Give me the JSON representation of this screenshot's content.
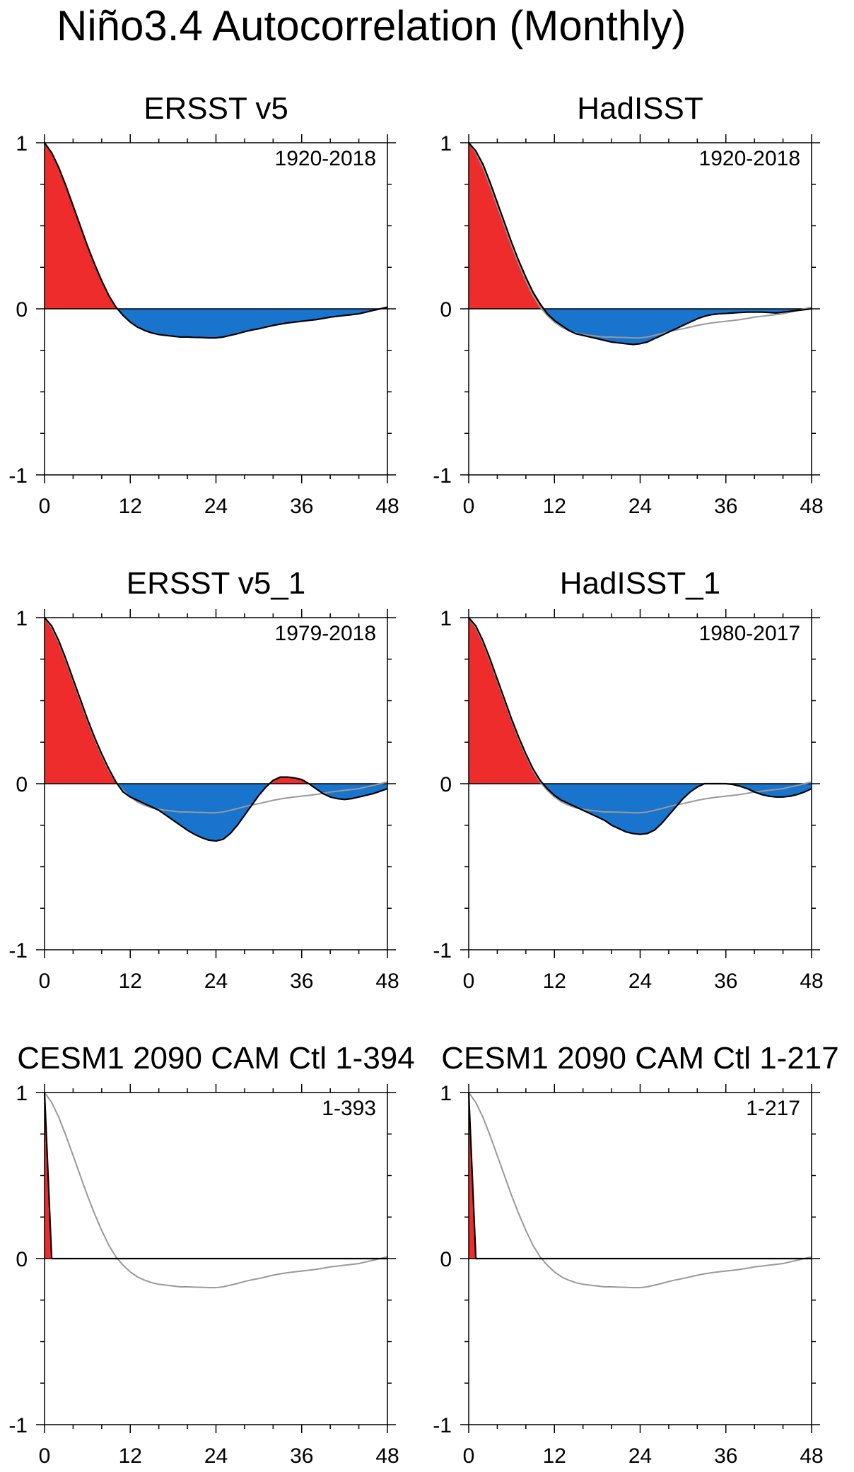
{
  "figure": {
    "title": "Niño3.4 Autocorrelation (Monthly)"
  },
  "colors": {
    "positive_fill": "#ee2c2c",
    "negative_fill": "#1874cd",
    "line": "#000000",
    "reference_line": "#999999"
  },
  "chart_data": [
    {
      "type": "area",
      "title": "ERSST v5",
      "period_label": "1920-2018",
      "xlim": [
        0,
        48
      ],
      "ylim": [
        -1,
        1
      ],
      "xticks": [
        0,
        12,
        24,
        36,
        48
      ],
      "yticks": [
        1,
        0,
        -1
      ],
      "xtick_labels": [
        "0",
        "12",
        "24",
        "36",
        "48"
      ],
      "ytick_labels": [
        "1",
        "0",
        "-1"
      ],
      "x": [
        0,
        1,
        2,
        3,
        4,
        5,
        6,
        7,
        8,
        9,
        10,
        11,
        12,
        13,
        14,
        15,
        16,
        17,
        18,
        19,
        20,
        21,
        22,
        23,
        24,
        25,
        26,
        27,
        28,
        29,
        30,
        31,
        32,
        33,
        34,
        35,
        36,
        37,
        38,
        39,
        40,
        41,
        42,
        43,
        44,
        45,
        46,
        47,
        48
      ],
      "series": [
        {
          "name": "ERSST v5",
          "values": [
            1.0,
            0.94,
            0.85,
            0.74,
            0.62,
            0.5,
            0.38,
            0.27,
            0.17,
            0.08,
            0.01,
            -0.04,
            -0.08,
            -0.11,
            -0.13,
            -0.145,
            -0.155,
            -0.16,
            -0.165,
            -0.17,
            -0.17,
            -0.172,
            -0.173,
            -0.175,
            -0.175,
            -0.17,
            -0.16,
            -0.15,
            -0.138,
            -0.128,
            -0.12,
            -0.11,
            -0.1,
            -0.092,
            -0.085,
            -0.08,
            -0.075,
            -0.07,
            -0.065,
            -0.058,
            -0.05,
            -0.045,
            -0.04,
            -0.035,
            -0.03,
            -0.02,
            -0.01,
            0.0,
            0.01
          ]
        }
      ],
      "reference": null
    },
    {
      "type": "area",
      "title": "HadISST",
      "period_label": "1920-2018",
      "xlim": [
        0,
        48
      ],
      "ylim": [
        -1,
        1
      ],
      "xticks": [
        0,
        12,
        24,
        36,
        48
      ],
      "yticks": [
        1,
        0,
        -1
      ],
      "xtick_labels": [
        "0",
        "12",
        "24",
        "36",
        "48"
      ],
      "ytick_labels": [
        "1",
        "0",
        "-1"
      ],
      "x": [
        0,
        1,
        2,
        3,
        4,
        5,
        6,
        7,
        8,
        9,
        10,
        11,
        12,
        13,
        14,
        15,
        16,
        17,
        18,
        19,
        20,
        21,
        22,
        23,
        24,
        25,
        26,
        27,
        28,
        29,
        30,
        31,
        32,
        33,
        34,
        35,
        36,
        37,
        38,
        39,
        40,
        41,
        42,
        43,
        44,
        45,
        46,
        47,
        48
      ],
      "series": [
        {
          "name": "HadISST",
          "values": [
            1.0,
            0.95,
            0.87,
            0.76,
            0.64,
            0.52,
            0.4,
            0.29,
            0.19,
            0.1,
            0.03,
            -0.03,
            -0.07,
            -0.1,
            -0.13,
            -0.15,
            -0.16,
            -0.17,
            -0.18,
            -0.19,
            -0.2,
            -0.205,
            -0.21,
            -0.215,
            -0.21,
            -0.2,
            -0.18,
            -0.16,
            -0.14,
            -0.12,
            -0.1,
            -0.08,
            -0.06,
            -0.045,
            -0.035,
            -0.03,
            -0.028,
            -0.025,
            -0.022,
            -0.02,
            -0.02,
            -0.02,
            -0.022,
            -0.025,
            -0.02,
            -0.015,
            -0.01,
            -0.005,
            0.0
          ]
        }
      ],
      "reference": {
        "name": "ERSST v5 (1920-2018)",
        "values": [
          1.0,
          0.94,
          0.85,
          0.74,
          0.62,
          0.5,
          0.38,
          0.27,
          0.17,
          0.08,
          0.01,
          -0.04,
          -0.08,
          -0.11,
          -0.13,
          -0.145,
          -0.155,
          -0.16,
          -0.165,
          -0.17,
          -0.17,
          -0.172,
          -0.173,
          -0.175,
          -0.175,
          -0.17,
          -0.16,
          -0.15,
          -0.138,
          -0.128,
          -0.12,
          -0.11,
          -0.1,
          -0.092,
          -0.085,
          -0.08,
          -0.075,
          -0.07,
          -0.065,
          -0.058,
          -0.05,
          -0.045,
          -0.04,
          -0.035,
          -0.03,
          -0.02,
          -0.01,
          0.0,
          0.01
        ]
      }
    },
    {
      "type": "area",
      "title": "ERSST v5_1",
      "period_label": "1979-2018",
      "xlim": [
        0,
        48
      ],
      "ylim": [
        -1,
        1
      ],
      "xticks": [
        0,
        12,
        24,
        36,
        48
      ],
      "yticks": [
        1,
        0,
        -1
      ],
      "xtick_labels": [
        "0",
        "12",
        "24",
        "36",
        "48"
      ],
      "ytick_labels": [
        "1",
        "0",
        "-1"
      ],
      "x": [
        0,
        1,
        2,
        3,
        4,
        5,
        6,
        7,
        8,
        9,
        10,
        11,
        12,
        13,
        14,
        15,
        16,
        17,
        18,
        19,
        20,
        21,
        22,
        23,
        24,
        25,
        26,
        27,
        28,
        29,
        30,
        31,
        32,
        33,
        34,
        35,
        36,
        37,
        38,
        39,
        40,
        41,
        42,
        43,
        44,
        45,
        46,
        47,
        48
      ],
      "series": [
        {
          "name": "ERSST v5_1",
          "values": [
            1.0,
            0.95,
            0.86,
            0.75,
            0.63,
            0.51,
            0.39,
            0.28,
            0.18,
            0.09,
            0.01,
            -0.05,
            -0.08,
            -0.1,
            -0.12,
            -0.14,
            -0.16,
            -0.19,
            -0.22,
            -0.25,
            -0.28,
            -0.305,
            -0.325,
            -0.34,
            -0.345,
            -0.335,
            -0.3,
            -0.25,
            -0.19,
            -0.13,
            -0.07,
            -0.02,
            0.02,
            0.04,
            0.04,
            0.035,
            0.025,
            0.0,
            -0.03,
            -0.06,
            -0.08,
            -0.09,
            -0.095,
            -0.09,
            -0.08,
            -0.07,
            -0.06,
            -0.045,
            -0.03
          ]
        }
      ],
      "reference": {
        "name": "ERSST v5 (1920-2018)",
        "values": [
          1.0,
          0.94,
          0.85,
          0.74,
          0.62,
          0.5,
          0.38,
          0.27,
          0.17,
          0.08,
          0.01,
          -0.04,
          -0.08,
          -0.11,
          -0.13,
          -0.145,
          -0.155,
          -0.16,
          -0.165,
          -0.17,
          -0.17,
          -0.172,
          -0.173,
          -0.175,
          -0.175,
          -0.17,
          -0.16,
          -0.15,
          -0.138,
          -0.128,
          -0.12,
          -0.11,
          -0.1,
          -0.092,
          -0.085,
          -0.08,
          -0.075,
          -0.07,
          -0.065,
          -0.058,
          -0.05,
          -0.045,
          -0.04,
          -0.035,
          -0.03,
          -0.02,
          -0.01,
          0.0,
          0.01
        ]
      }
    },
    {
      "type": "area",
      "title": "HadISST_1",
      "period_label": "1980-2017",
      "xlim": [
        0,
        48
      ],
      "ylim": [
        -1,
        1
      ],
      "xticks": [
        0,
        12,
        24,
        36,
        48
      ],
      "yticks": [
        1,
        0,
        -1
      ],
      "xtick_labels": [
        "0",
        "12",
        "24",
        "36",
        "48"
      ],
      "ytick_labels": [
        "1",
        "0",
        "-1"
      ],
      "x": [
        0,
        1,
        2,
        3,
        4,
        5,
        6,
        7,
        8,
        9,
        10,
        11,
        12,
        13,
        14,
        15,
        16,
        17,
        18,
        19,
        20,
        21,
        22,
        23,
        24,
        25,
        26,
        27,
        28,
        29,
        30,
        31,
        32,
        33,
        34,
        35,
        36,
        37,
        38,
        39,
        40,
        41,
        42,
        43,
        44,
        45,
        46,
        47,
        48
      ],
      "series": [
        {
          "name": "HadISST_1",
          "values": [
            1.0,
            0.95,
            0.86,
            0.75,
            0.63,
            0.51,
            0.39,
            0.28,
            0.18,
            0.09,
            0.02,
            -0.03,
            -0.07,
            -0.1,
            -0.12,
            -0.14,
            -0.16,
            -0.18,
            -0.2,
            -0.22,
            -0.25,
            -0.27,
            -0.29,
            -0.3,
            -0.305,
            -0.3,
            -0.28,
            -0.24,
            -0.19,
            -0.14,
            -0.09,
            -0.05,
            -0.02,
            0.0,
            0.0,
            0.0,
            0.0,
            -0.005,
            -0.015,
            -0.03,
            -0.05,
            -0.065,
            -0.075,
            -0.08,
            -0.08,
            -0.075,
            -0.065,
            -0.05,
            -0.03
          ]
        }
      ],
      "reference": {
        "name": "ERSST v5 (1920-2018)",
        "values": [
          1.0,
          0.94,
          0.85,
          0.74,
          0.62,
          0.5,
          0.38,
          0.27,
          0.17,
          0.08,
          0.01,
          -0.04,
          -0.08,
          -0.11,
          -0.13,
          -0.145,
          -0.155,
          -0.16,
          -0.165,
          -0.17,
          -0.17,
          -0.172,
          -0.173,
          -0.175,
          -0.175,
          -0.17,
          -0.16,
          -0.15,
          -0.138,
          -0.128,
          -0.12,
          -0.11,
          -0.1,
          -0.092,
          -0.085,
          -0.08,
          -0.075,
          -0.07,
          -0.065,
          -0.058,
          -0.05,
          -0.045,
          -0.04,
          -0.035,
          -0.03,
          -0.02,
          -0.01,
          0.0,
          0.01
        ]
      }
    },
    {
      "type": "area",
      "title": "CESM1 2090 CAM Ctl 1-394",
      "period_label": "1-393",
      "xlim": [
        0,
        48
      ],
      "ylim": [
        -1,
        1
      ],
      "xticks": [
        0,
        12,
        24,
        36,
        48
      ],
      "yticks": [
        1,
        0,
        -1
      ],
      "xtick_labels": [
        "0",
        "12",
        "24",
        "36",
        "48"
      ],
      "ytick_labels": [
        "1",
        "0",
        "-1"
      ],
      "x": [
        0,
        1,
        2,
        3,
        4,
        5,
        6,
        7,
        8,
        9,
        10,
        11,
        12,
        13,
        14,
        15,
        16,
        17,
        18,
        19,
        20,
        21,
        22,
        23,
        24,
        25,
        26,
        27,
        28,
        29,
        30,
        31,
        32,
        33,
        34,
        35,
        36,
        37,
        38,
        39,
        40,
        41,
        42,
        43,
        44,
        45,
        46,
        47,
        48
      ],
      "series": [
        {
          "name": "CESM1 2090 CAM Ctl 1-394",
          "values": [
            1.0,
            0.0,
            0,
            0,
            0,
            0,
            0,
            0,
            0,
            0,
            0,
            0,
            0,
            0,
            0,
            0,
            0,
            0,
            0,
            0,
            0,
            0,
            0,
            0,
            0,
            0,
            0,
            0,
            0,
            0,
            0,
            0,
            0,
            0,
            0,
            0,
            0,
            0,
            0,
            0,
            0,
            0,
            0,
            0,
            0,
            0,
            0,
            0,
            0
          ]
        }
      ],
      "reference": {
        "name": "ERSST v5 (1920-2018)",
        "values": [
          1.0,
          0.94,
          0.85,
          0.74,
          0.62,
          0.5,
          0.38,
          0.27,
          0.17,
          0.08,
          0.01,
          -0.04,
          -0.08,
          -0.11,
          -0.13,
          -0.145,
          -0.155,
          -0.16,
          -0.165,
          -0.17,
          -0.17,
          -0.172,
          -0.173,
          -0.175,
          -0.175,
          -0.17,
          -0.16,
          -0.15,
          -0.138,
          -0.128,
          -0.12,
          -0.11,
          -0.1,
          -0.092,
          -0.085,
          -0.08,
          -0.075,
          -0.07,
          -0.065,
          -0.058,
          -0.05,
          -0.045,
          -0.04,
          -0.035,
          -0.03,
          -0.02,
          -0.01,
          0.0,
          0.01
        ]
      }
    },
    {
      "type": "area",
      "title": "CESM1 2090 CAM Ctl 1-217",
      "period_label": "1-217",
      "xlim": [
        0,
        48
      ],
      "ylim": [
        -1,
        1
      ],
      "xticks": [
        0,
        12,
        24,
        36,
        48
      ],
      "yticks": [
        1,
        0,
        -1
      ],
      "xtick_labels": [
        "0",
        "12",
        "24",
        "36",
        "48"
      ],
      "ytick_labels": [
        "1",
        "0",
        "-1"
      ],
      "x": [
        0,
        1,
        2,
        3,
        4,
        5,
        6,
        7,
        8,
        9,
        10,
        11,
        12,
        13,
        14,
        15,
        16,
        17,
        18,
        19,
        20,
        21,
        22,
        23,
        24,
        25,
        26,
        27,
        28,
        29,
        30,
        31,
        32,
        33,
        34,
        35,
        36,
        37,
        38,
        39,
        40,
        41,
        42,
        43,
        44,
        45,
        46,
        47,
        48
      ],
      "series": [
        {
          "name": "CESM1 2090 CAM Ctl 1-217",
          "values": [
            1.0,
            0.0,
            0,
            0,
            0,
            0,
            0,
            0,
            0,
            0,
            0,
            0,
            0,
            0,
            0,
            0,
            0,
            0,
            0,
            0,
            0,
            0,
            0,
            0,
            0,
            0,
            0,
            0,
            0,
            0,
            0,
            0,
            0,
            0,
            0,
            0,
            0,
            0,
            0,
            0,
            0,
            0,
            0,
            0,
            0,
            0,
            0,
            0,
            0
          ]
        }
      ],
      "reference": {
        "name": "ERSST v5 (1920-2018)",
        "values": [
          1.0,
          0.94,
          0.85,
          0.74,
          0.62,
          0.5,
          0.38,
          0.27,
          0.17,
          0.08,
          0.01,
          -0.04,
          -0.08,
          -0.11,
          -0.13,
          -0.145,
          -0.155,
          -0.16,
          -0.165,
          -0.17,
          -0.17,
          -0.172,
          -0.173,
          -0.175,
          -0.175,
          -0.17,
          -0.16,
          -0.15,
          -0.138,
          -0.128,
          -0.12,
          -0.11,
          -0.1,
          -0.092,
          -0.085,
          -0.08,
          -0.075,
          -0.07,
          -0.065,
          -0.058,
          -0.05,
          -0.045,
          -0.04,
          -0.035,
          -0.03,
          -0.02,
          -0.01,
          0.0,
          0.01
        ]
      }
    }
  ]
}
